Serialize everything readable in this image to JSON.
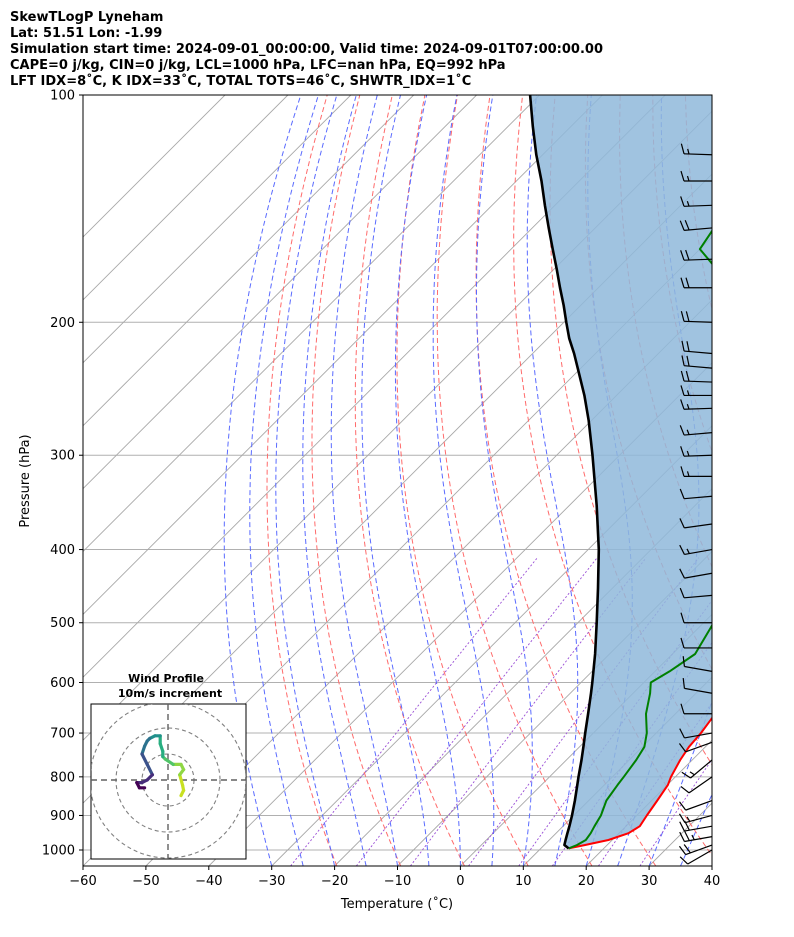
{
  "header": {
    "line1": "SkewTLogP Lyneham",
    "line2": "Lat: 51.51   Lon: -1.99",
    "line3": "Simulation start time: 2024-09-01_00:00:00, Valid time: 2024-09-01T07:00:00.00",
    "line4": "CAPE=0 j/kg, CIN=0 j/kg, LCL=1000 hPa, LFC=nan hPa, EQ=992 hPa",
    "line5": "LFT IDX=8˚C, K IDX=33˚C, TOTAL TOTS=46˚C, SHWTR_IDX=1˚C"
  },
  "chart_data": {
    "type": "line",
    "subtype": "skew-T log-P",
    "xlabel": "Temperature (˚C)",
    "ylabel": "Pressure (hPa)",
    "xlim": [
      -60,
      40
    ],
    "ylim": [
      1050,
      100
    ],
    "yscale": "log",
    "x_ticks": [
      "−60",
      "−50",
      "−40",
      "−30",
      "−20",
      "−10",
      "0",
      "10",
      "20",
      "30",
      "40"
    ],
    "y_ticks": [
      1000,
      900,
      800,
      700,
      600,
      500,
      400,
      300,
      200,
      100
    ],
    "grid": true,
    "skew_deg": 45,
    "series": [
      {
        "color": "#ff0000",
        "pressure": [
          995,
          985,
          970,
          950,
          930,
          900,
          860,
          820,
          800,
          760,
          730,
          700,
          660,
          620,
          600,
          580,
          550,
          500,
          450,
          400,
          350,
          300,
          270,
          250,
          230,
          220,
          210,
          200,
          190,
          180,
          170,
          160,
          150,
          140,
          130,
          120,
          110,
          100
        ],
        "values": [
          14.4,
          16.5,
          19.4,
          21.5,
          22.2,
          21.6,
          20.9,
          20.1,
          19.3,
          18.1,
          17.4,
          17.1,
          16.3,
          15.2,
          12.8,
          11.6,
          9.7,
          6.6,
          3.1,
          -1.6,
          -7.3,
          -14.4,
          -19.2,
          -22.7,
          -29.2,
          -28.9,
          -31.1,
          -34.1,
          -37.4,
          -40.0,
          -42.4,
          -44.3,
          -45.9,
          -48.0,
          -51.3,
          -54.9,
          -59.1,
          -63.0
        ]
      },
      {
        "color": "#008000",
        "pressure": [
          995,
          985,
          970,
          950,
          930,
          900,
          860,
          820,
          800,
          760,
          730,
          700,
          660,
          620,
          600,
          580,
          550,
          500,
          450,
          400,
          350,
          300,
          270,
          250,
          230,
          220,
          210,
          200,
          190,
          180,
          170,
          160,
          150,
          140,
          130,
          120,
          110,
          100
        ],
        "values": [
          14.4,
          15.2,
          15.8,
          15.5,
          15.0,
          14.3,
          12.8,
          12.1,
          11.8,
          11.1,
          10.3,
          8.5,
          5.3,
          2.7,
          1.1,
          2.3,
          3.6,
          1.6,
          -2.4,
          -5.9,
          -11.7,
          -17.5,
          -23.6,
          -28.7,
          -33.0,
          -35.5,
          -38.0,
          -40.0,
          -43.6,
          -48.1,
          -54.2,
          -60.0,
          -61.1,
          -60.3,
          -59.3,
          -58.3,
          -56.4,
          -56.0
        ]
      },
      {
        "color": "#000000",
        "pressure": [
          995,
          985,
          970,
          950,
          930,
          900,
          860,
          820,
          800,
          760,
          730,
          700,
          660,
          620,
          600,
          580,
          550,
          500,
          450,
          400,
          350,
          300,
          270,
          250,
          230,
          220,
          210,
          200,
          190,
          180,
          170,
          160,
          150,
          140,
          130,
          120,
          110,
          100
        ],
        "values": [
          14.4,
          13.2,
          12.6,
          11.8,
          11.0,
          9.7,
          7.8,
          5.7,
          4.6,
          2.4,
          0.6,
          -1.3,
          -3.9,
          -6.7,
          -8.2,
          -9.8,
          -12.3,
          -17.0,
          -22.3,
          -28.3,
          -35.6,
          -44.3,
          -50.4,
          -55.1,
          -60.5,
          -63.4,
          -66.6,
          -69.6,
          -72.7,
          -76.1,
          -79.6,
          -83.4,
          -87.4,
          -91.6,
          -96.0,
          -101.0,
          -106.1,
          -111.5
        ]
      }
    ],
    "dry_adiabats_theta_K": [
      250,
      260,
      270,
      280,
      290,
      300,
      310,
      320,
      330,
      340,
      350,
      360,
      370,
      380,
      390,
      400,
      410,
      420,
      430,
      440,
      450
    ],
    "moist_adiabats_start_C": [
      -30,
      -25,
      -20,
      -15,
      -10,
      -5,
      0,
      5,
      10,
      15,
      20,
      25,
      30,
      35
    ],
    "mixing_ratio_lines_gkg": [
      0.4,
      1,
      2,
      4,
      7,
      10,
      16,
      24
    ],
    "wind_barbs": {
      "pressure": [
        1000,
        985,
        960,
        930,
        900,
        860,
        800,
        760,
        720,
        700,
        660,
        620,
        580,
        540,
        500,
        460,
        430,
        400,
        370,
        340,
        320,
        300,
        280,
        260,
        250,
        240,
        230,
        220,
        200,
        180,
        165,
        150,
        140,
        130,
        120
      ],
      "speed_kt": [
        12,
        20,
        25,
        20,
        15,
        12,
        12,
        15,
        12,
        10,
        10,
        8,
        8,
        10,
        10,
        12,
        12,
        14,
        12,
        12,
        14,
        14,
        14,
        16,
        16,
        18,
        20,
        20,
        18,
        20,
        20,
        18,
        16,
        16,
        14
      ],
      "dir_deg": [
        240,
        250,
        260,
        260,
        255,
        250,
        235,
        230,
        250,
        260,
        270,
        280,
        280,
        270,
        270,
        265,
        260,
        260,
        262,
        265,
        270,
        268,
        265,
        268,
        270,
        272,
        275,
        275,
        272,
        270,
        268,
        265,
        268,
        270,
        272
      ]
    },
    "hodograph": {
      "title": "Wind Profile",
      "subtitle": "10m/s increment",
      "rings_ms": [
        10,
        20,
        30
      ],
      "u": [
        5,
        6,
        5.6,
        4.5,
        6,
        5,
        2,
        -1,
        -2,
        -2,
        -3,
        -3,
        -5,
        -7,
        -8,
        -9,
        -10,
        -8,
        -6,
        -8,
        -10,
        -12,
        -11,
        -9
      ],
      "v": [
        -6,
        -4,
        -2,
        2,
        4,
        6,
        6,
        8,
        9,
        11,
        14,
        17,
        17,
        16,
        15,
        13,
        10,
        6,
        2,
        0,
        -1,
        -1,
        -3,
        -3
      ]
    }
  }
}
